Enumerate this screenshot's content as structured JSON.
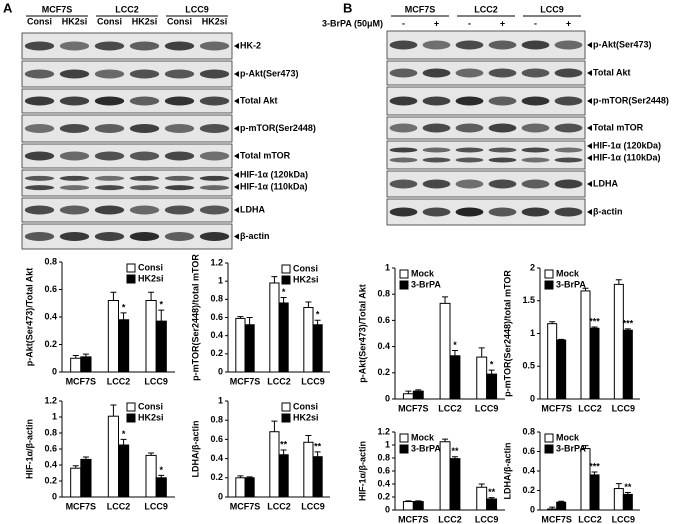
{
  "panels": [
    {
      "letter": "A",
      "blot": {
        "groups": [
          "MCF7S",
          "LCC2",
          "LCC9"
        ],
        "lanes": [
          "Consi",
          "HK2si",
          "Consi",
          "HK2si",
          "Consi",
          "HK2si"
        ],
        "rows": [
          [
            "HK-2"
          ],
          [
            "p-Akt(Ser473)"
          ],
          [
            "Total Akt"
          ],
          [
            "p-mTOR(Ser2448)"
          ],
          [
            "Total mTOR"
          ],
          [
            "HIF-1α (120kDa)",
            "HIF-1α (110kDa)"
          ],
          [
            "LDHA"
          ],
          [
            "β-actin"
          ]
        ]
      }
    },
    {
      "letter": "B",
      "blot": {
        "groups": [
          "MCF7S",
          "LCC2",
          "LCC9"
        ],
        "treatment": "3-BrPA (50μM)",
        "lanes": [
          "-",
          "+",
          "-",
          "+",
          "-",
          "+"
        ],
        "rows": [
          [
            "p-Akt(Ser473)"
          ],
          [
            "Total Akt"
          ],
          [
            "p-mTOR(Ser2448)"
          ],
          [
            "Total mTOR"
          ],
          [
            "HIF-1α (120kDa)",
            "HIF-1α (110kDa)"
          ],
          [
            "LDHA"
          ],
          [
            "β-actin"
          ]
        ]
      }
    }
  ],
  "chart_data": [
    {
      "type": "bar",
      "y_label": "p-Akt(Ser473)/Total Akt",
      "categories": [
        "MCF7S",
        "LCC2",
        "LCC9"
      ],
      "ylim": [
        0,
        0.8
      ],
      "yticks": [
        0,
        0.2,
        0.4,
        0.6,
        0.8
      ],
      "legend": "upper right",
      "series": [
        {
          "name": "Consi",
          "color": "#ffffff",
          "values": [
            0.1,
            0.52,
            0.52
          ],
          "errors": [
            0.02,
            0.06,
            0.06
          ]
        },
        {
          "name": "HK2si",
          "color": "#000000",
          "values": [
            0.11,
            0.38,
            0.37
          ],
          "errors": [
            0.02,
            0.05,
            0.08
          ],
          "annotations": [
            null,
            "*",
            "*"
          ]
        }
      ]
    },
    {
      "type": "bar",
      "y_label": "p-mTOR(Ser2448)/total mTOR",
      "categories": [
        "MCF7S",
        "LCC2",
        "LCC9"
      ],
      "ylim": [
        0,
        1.2
      ],
      "yticks": [
        0,
        0.2,
        0.4,
        0.6,
        0.8,
        1,
        1.2
      ],
      "legend": "upper right",
      "series": [
        {
          "name": "Consi",
          "color": "#ffffff",
          "values": [
            0.59,
            0.98,
            0.71
          ],
          "errors": [
            0.02,
            0.07,
            0.06
          ]
        },
        {
          "name": "HK2si",
          "color": "#000000",
          "values": [
            0.52,
            0.76,
            0.52
          ],
          "errors": [
            0.08,
            0.06,
            0.05
          ],
          "annotations": [
            null,
            "*",
            "*"
          ]
        }
      ]
    },
    {
      "type": "bar",
      "y_label": "HIF-1α/β-actin",
      "categories": [
        "MCF7S",
        "LCC2",
        "LCC9"
      ],
      "ylim": [
        0,
        1.2
      ],
      "yticks": [
        0,
        0.2,
        0.4,
        0.6,
        0.8,
        1,
        1.2
      ],
      "legend": "upper right",
      "series": [
        {
          "name": "Consi",
          "color": "#ffffff",
          "values": [
            0.36,
            1.01,
            0.52
          ],
          "errors": [
            0.03,
            0.14,
            0.03
          ]
        },
        {
          "name": "HK2si",
          "color": "#000000",
          "values": [
            0.47,
            0.65,
            0.24
          ],
          "errors": [
            0.03,
            0.07,
            0.03
          ],
          "annotations": [
            null,
            "*",
            "*"
          ]
        }
      ]
    },
    {
      "type": "bar",
      "y_label": "LDHA/β-actin",
      "categories": [
        "MCF7S",
        "LCC2",
        "LCC9"
      ],
      "ylim": [
        0,
        1
      ],
      "yticks": [
        0,
        0.2,
        0.4,
        0.6,
        0.8,
        1
      ],
      "legend": "upper right",
      "series": [
        {
          "name": "Consi",
          "color": "#ffffff",
          "values": [
            0.2,
            0.68,
            0.57
          ],
          "errors": [
            0.02,
            0.11,
            0.07
          ]
        },
        {
          "name": "HK2si",
          "color": "#000000",
          "values": [
            0.2,
            0.44,
            0.42
          ],
          "errors": [
            0.01,
            0.05,
            0.05
          ],
          "annotations": [
            null,
            "**",
            "**"
          ]
        }
      ]
    },
    {
      "type": "bar",
      "y_label": "p-Akt(Ser473)/Total Akt",
      "categories": [
        "MCF7S",
        "LCC2",
        "LCC9"
      ],
      "ylim": [
        0,
        1
      ],
      "yticks": [
        0,
        0.2,
        0.4,
        0.6,
        0.8,
        1
      ],
      "legend": "upper left",
      "series": [
        {
          "name": "Mock",
          "color": "#ffffff",
          "values": [
            0.04,
            0.73,
            0.32
          ],
          "errors": [
            0.02,
            0.05,
            0.07
          ]
        },
        {
          "name": "3-BrPA",
          "color": "#000000",
          "values": [
            0.06,
            0.33,
            0.19
          ],
          "errors": [
            0.01,
            0.04,
            0.03
          ],
          "annotations": [
            null,
            "*",
            "*"
          ]
        }
      ]
    },
    {
      "type": "bar",
      "y_label": "p-mTOR(Ser2448)/total mTOR",
      "categories": [
        "MCF7S",
        "LCC2",
        "LCC9"
      ],
      "ylim": [
        0,
        2
      ],
      "yticks": [
        0,
        0.5,
        1,
        1.5,
        2
      ],
      "legend": "upper left",
      "series": [
        {
          "name": "Mock",
          "color": "#ffffff",
          "values": [
            1.15,
            1.65,
            1.75
          ],
          "errors": [
            0.03,
            0.04,
            0.07
          ]
        },
        {
          "name": "3-BrPA",
          "color": "#000000",
          "values": [
            0.9,
            1.08,
            1.05
          ],
          "errors": [
            0.01,
            0.02,
            0.02
          ],
          "annotations": [
            null,
            "***",
            "***"
          ]
        }
      ]
    },
    {
      "type": "bar",
      "y_label": "HIF-1α/β-actin",
      "categories": [
        "MCF7S",
        "LCC2",
        "LCC9"
      ],
      "ylim": [
        0,
        1.2
      ],
      "yticks": [
        0,
        0.2,
        0.4,
        0.6,
        0.8,
        1,
        1.2
      ],
      "legend": "upper left",
      "series": [
        {
          "name": "Mock",
          "color": "#ffffff",
          "values": [
            0.13,
            1.05,
            0.35
          ],
          "errors": [
            0.01,
            0.04,
            0.05
          ]
        },
        {
          "name": "3-BrPA",
          "color": "#000000",
          "values": [
            0.13,
            0.79,
            0.17
          ],
          "errors": [
            0.01,
            0.03,
            0.02
          ],
          "annotations": [
            null,
            "**",
            "**"
          ]
        }
      ]
    },
    {
      "type": "bar",
      "y_label": "LDHA/β-actin",
      "categories": [
        "MCF7S",
        "LCC2",
        "LCC9"
      ],
      "ylim": [
        0,
        0.8
      ],
      "yticks": [
        0,
        0.2,
        0.4,
        0.6,
        0.8
      ],
      "legend": "upper left",
      "series": [
        {
          "name": "Mock",
          "color": "#ffffff",
          "values": [
            0.01,
            0.63,
            0.22
          ],
          "errors": [
            0.02,
            0.03,
            0.05
          ]
        },
        {
          "name": "3-BrPA",
          "color": "#000000",
          "values": [
            0.08,
            0.36,
            0.16
          ],
          "errors": [
            0.01,
            0.03,
            0.02
          ],
          "annotations": [
            null,
            "***",
            "**"
          ]
        }
      ]
    }
  ]
}
